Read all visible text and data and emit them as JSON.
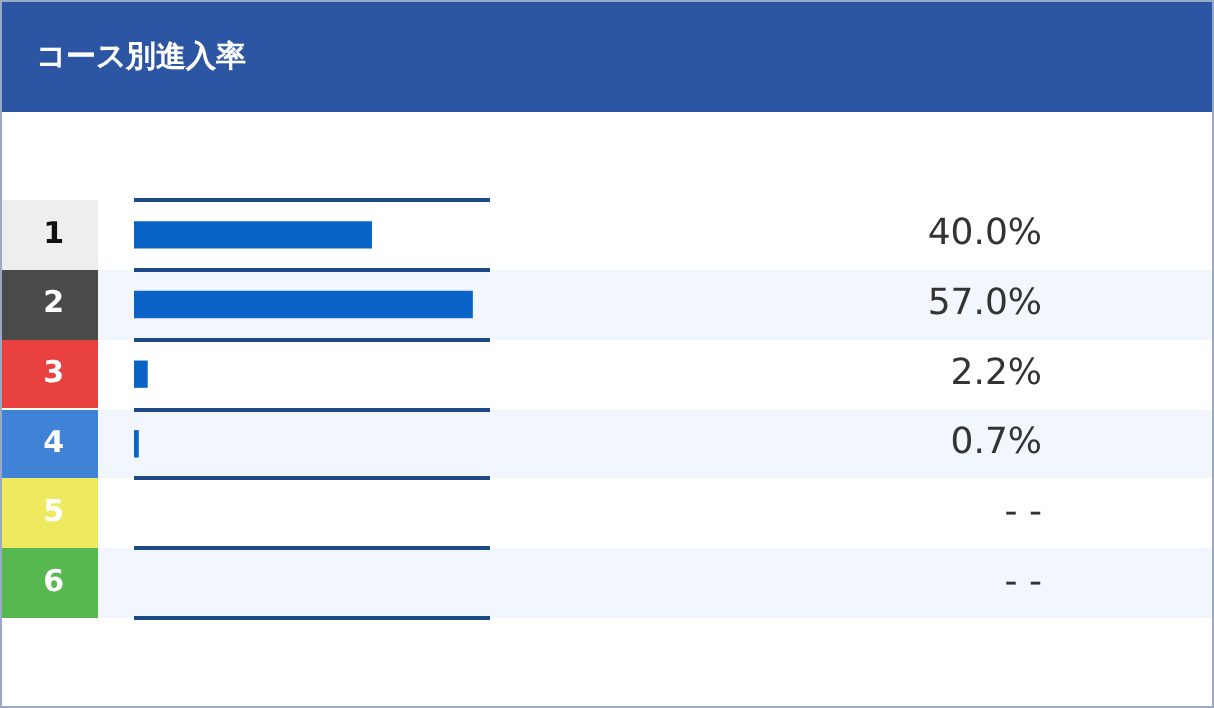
{
  "chart_data": {
    "type": "bar",
    "orientation": "horizontal",
    "title": "コース別進入率",
    "categories": [
      "1",
      "2",
      "3",
      "4",
      "5",
      "6"
    ],
    "values": [
      40.0,
      57.0,
      2.2,
      0.7,
      null,
      null
    ],
    "value_labels": [
      "40.0%",
      "57.0%",
      "2.2%",
      "0.7%",
      "- -",
      "- -"
    ],
    "color": "#0a64c8",
    "tick_labels": "y",
    "grid": "y",
    "legend": false
  }
}
